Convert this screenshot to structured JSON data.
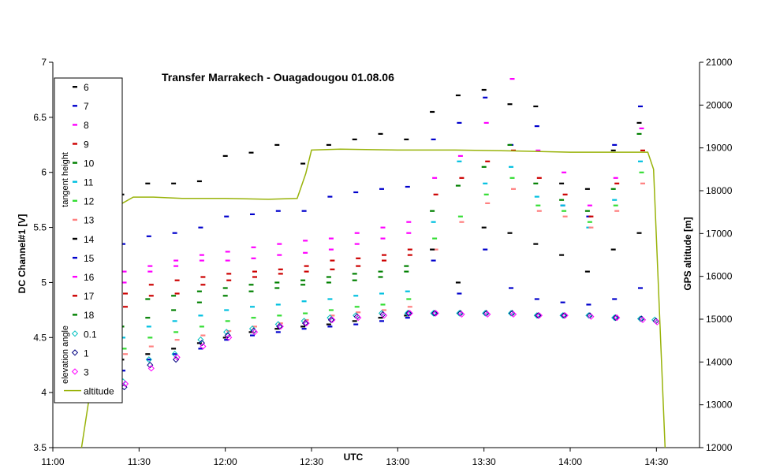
{
  "chart_data": {
    "type": "scatter",
    "title": "Transfer Marrakech - Ouagadougou   01.08.06",
    "xlabel": "UTC",
    "ylabel": "DC Channel#1 [V]",
    "y2label": "GPS altitude [m]",
    "x_ticks": [
      "11:00",
      "11:30",
      "12:00",
      "12:30",
      "13:00",
      "13:30",
      "14:00",
      "14:30"
    ],
    "xlim": [
      "11:00",
      "14:45"
    ],
    "ylim": [
      3.5,
      7
    ],
    "y_ticks": [
      "3.5",
      "4",
      "4.5",
      "5",
      "5.5",
      "6",
      "6.5",
      "7"
    ],
    "y2lim": [
      12000,
      21000
    ],
    "y2_ticks": [
      "12000",
      "13000",
      "14000",
      "15000",
      "16000",
      "17000",
      "18000",
      "19000",
      "20000",
      "21000"
    ],
    "grid": false,
    "legend_position": "left",
    "legend_sections": [
      "tangent height",
      "elevation angle"
    ],
    "colors": {
      "6": "#000000",
      "7": "#0000cc",
      "8": "#ff00ff",
      "9": "#cc0000",
      "10": "#008000",
      "11": "#00c0e0",
      "12": "#33dd33",
      "13": "#ff8080",
      "14": "#000000",
      "15": "#0000cc",
      "16": "#ff00ff",
      "17": "#cc0000",
      "18": "#008000",
      "0.1": "#00c0c0",
      "1": "#000080",
      "3": "#ff00ff",
      "altitude": "#99b30a"
    },
    "series": [
      {
        "name": "6",
        "marker": "dash",
        "group": "tangent",
        "x": [
          "11:24",
          "11:33",
          "11:42",
          "11:51",
          "12:00",
          "12:09",
          "12:18",
          "12:27",
          "12:36",
          "12:45",
          "12:54",
          "13:03",
          "13:12",
          "13:21",
          "13:30",
          "13:39",
          "13:48",
          "13:57",
          "14:06",
          "14:15",
          "14:24"
        ],
        "y": [
          5.8,
          5.9,
          5.9,
          5.92,
          6.15,
          6.18,
          6.25,
          6.08,
          6.25,
          6.3,
          6.35,
          6.3,
          6.55,
          6.7,
          6.75,
          6.62,
          6.6,
          5.9,
          5.85,
          6.2,
          6.45
        ]
      },
      {
        "name": "7",
        "marker": "dash",
        "group": "tangent",
        "x": [
          "11:24",
          "11:33",
          "11:42",
          "11:51",
          "12:00",
          "12:09",
          "12:18",
          "12:27",
          "12:36",
          "12:45",
          "12:54",
          "13:03",
          "13:12",
          "13:21",
          "13:30",
          "13:39",
          "13:48",
          "13:57",
          "14:06",
          "14:15",
          "14:24"
        ],
        "y": [
          5.35,
          5.42,
          5.45,
          5.5,
          5.6,
          5.62,
          5.65,
          5.65,
          5.78,
          5.82,
          5.85,
          5.87,
          6.3,
          6.45,
          6.68,
          6.25,
          6.42,
          5.7,
          5.6,
          6.25,
          6.6
        ]
      },
      {
        "name": "8",
        "marker": "dash",
        "group": "tangent",
        "x": [
          "11:24",
          "11:33",
          "11:42",
          "11:51",
          "12:00",
          "12:09",
          "12:18",
          "12:27",
          "12:36",
          "12:45",
          "12:54",
          "13:03",
          "13:12",
          "13:21",
          "13:30",
          "13:39",
          "13:48",
          "13:57",
          "14:06",
          "14:15",
          "14:24"
        ],
        "y": [
          5.1,
          5.15,
          5.2,
          5.25,
          5.28,
          5.32,
          5.35,
          5.38,
          5.4,
          5.45,
          5.5,
          5.55,
          5.95,
          6.15,
          6.45,
          6.85,
          6.2,
          6.0,
          5.7,
          5.95,
          6.4
        ]
      },
      {
        "name": "9",
        "marker": "dash",
        "group": "tangent",
        "x": [
          "11:24",
          "11:33",
          "11:42",
          "11:51",
          "12:00",
          "12:09",
          "12:18",
          "12:27",
          "12:36",
          "12:45",
          "12:54",
          "13:03",
          "13:12",
          "13:21",
          "13:30",
          "13:39",
          "13:48",
          "13:57",
          "14:06",
          "14:15",
          "14:24"
        ],
        "y": [
          4.9,
          4.98,
          5.02,
          5.05,
          5.08,
          5.1,
          5.12,
          5.15,
          5.2,
          5.22,
          5.25,
          5.3,
          5.8,
          5.95,
          6.1,
          6.2,
          5.95,
          5.8,
          5.6,
          5.9,
          6.2
        ]
      },
      {
        "name": "10",
        "marker": "dash",
        "group": "tangent",
        "x": [
          "11:24",
          "11:33",
          "11:42",
          "11:51",
          "12:00",
          "12:09",
          "12:18",
          "12:27",
          "12:36",
          "12:45",
          "12:54",
          "13:03",
          "13:12",
          "13:21",
          "13:30",
          "13:39",
          "13:48",
          "13:57",
          "14:06",
          "14:15",
          "14:24"
        ],
        "y": [
          4.6,
          4.85,
          4.88,
          4.92,
          4.95,
          4.98,
          5.0,
          5.02,
          5.05,
          5.08,
          5.1,
          5.15,
          5.65,
          5.88,
          6.05,
          6.25,
          5.9,
          5.75,
          5.65,
          5.85,
          6.35
        ]
      },
      {
        "name": "11",
        "marker": "dash",
        "group": "tangent",
        "x": [
          "11:24",
          "11:33",
          "11:42",
          "11:51",
          "12:00",
          "12:09",
          "12:18",
          "12:27",
          "12:36",
          "12:45",
          "12:54",
          "13:03",
          "13:12",
          "13:21",
          "13:30",
          "13:39",
          "13:48",
          "13:57",
          "14:06",
          "14:15",
          "14:24"
        ],
        "y": [
          4.5,
          4.6,
          4.65,
          4.7,
          4.75,
          4.78,
          4.8,
          4.83,
          4.85,
          4.88,
          4.9,
          4.92,
          5.55,
          6.1,
          5.9,
          6.05,
          5.78,
          5.7,
          5.5,
          5.75,
          6.1
        ]
      },
      {
        "name": "12",
        "marker": "dash",
        "group": "tangent",
        "x": [
          "11:24",
          "11:33",
          "11:42",
          "11:51",
          "12:00",
          "12:09",
          "12:18",
          "12:27",
          "12:36",
          "12:45",
          "12:54",
          "13:03",
          "13:12",
          "13:21",
          "13:30",
          "13:39",
          "13:48",
          "13:57",
          "14:06",
          "14:15",
          "14:24"
        ],
        "y": [
          4.4,
          4.5,
          4.55,
          4.6,
          4.65,
          4.68,
          4.7,
          4.72,
          4.75,
          4.78,
          4.8,
          4.85,
          5.4,
          5.6,
          5.8,
          5.95,
          5.7,
          5.65,
          5.55,
          5.7,
          6.0
        ]
      },
      {
        "name": "13",
        "marker": "dash",
        "group": "tangent",
        "x": [
          "11:24",
          "11:33",
          "11:42",
          "11:51",
          "12:00",
          "12:09",
          "12:18",
          "12:27",
          "12:36",
          "12:45",
          "12:54",
          "13:03",
          "13:12",
          "13:21",
          "13:30",
          "13:39",
          "13:48",
          "13:57",
          "14:06",
          "14:15",
          "14:24"
        ],
        "y": [
          4.35,
          4.42,
          4.48,
          4.52,
          4.56,
          4.6,
          4.63,
          4.66,
          4.7,
          4.73,
          4.75,
          4.78,
          5.3,
          5.55,
          5.72,
          5.85,
          5.65,
          5.6,
          5.5,
          5.65,
          5.9
        ]
      },
      {
        "name": "14",
        "marker": "dash",
        "group": "tangent",
        "x": [
          "11:24",
          "11:33",
          "11:42",
          "11:51",
          "12:00",
          "12:09",
          "12:18",
          "12:27",
          "12:36",
          "12:45",
          "12:54",
          "13:03",
          "13:12",
          "13:21",
          "13:30",
          "13:39",
          "13:48",
          "13:57",
          "14:06",
          "14:15",
          "14:24"
        ],
        "y": [
          4.3,
          4.35,
          4.4,
          4.45,
          4.5,
          4.55,
          4.58,
          4.6,
          4.62,
          4.65,
          4.68,
          4.7,
          5.3,
          5.0,
          5.5,
          5.45,
          5.35,
          5.25,
          5.1,
          5.3,
          5.45
        ]
      },
      {
        "name": "15",
        "marker": "dash",
        "group": "tangent",
        "x": [
          "11:24",
          "11:33",
          "11:42",
          "11:51",
          "12:00",
          "12:09",
          "12:18",
          "12:27",
          "12:36",
          "12:45",
          "12:54",
          "13:03",
          "13:12",
          "13:21",
          "13:30",
          "13:39",
          "13:48",
          "13:57",
          "14:06",
          "14:15",
          "14:24"
        ],
        "y": [
          4.2,
          4.3,
          4.35,
          4.4,
          4.48,
          4.52,
          4.55,
          4.58,
          4.6,
          4.62,
          4.65,
          4.68,
          5.2,
          4.9,
          5.3,
          4.95,
          4.85,
          4.82,
          4.8,
          4.85,
          4.95
        ]
      },
      {
        "name": "16",
        "marker": "dash",
        "group": "tangent",
        "x": [
          "11:24",
          "11:33",
          "11:42",
          "11:51",
          "12:00",
          "12:09",
          "12:18",
          "12:27",
          "12:36",
          "12:45",
          "12:54",
          "13:03"
        ],
        "y": [
          5.0,
          5.1,
          5.15,
          5.2,
          5.2,
          5.22,
          5.25,
          5.27,
          5.3,
          5.35,
          5.4,
          5.45
        ]
      },
      {
        "name": "17",
        "marker": "dash",
        "group": "tangent",
        "x": [
          "11:24",
          "11:33",
          "11:42",
          "11:51",
          "12:00",
          "12:09",
          "12:18",
          "12:27",
          "12:36",
          "12:45",
          "12:54",
          "13:03"
        ],
        "y": [
          4.78,
          4.88,
          4.9,
          4.98,
          5.02,
          5.05,
          5.08,
          5.1,
          5.12,
          5.15,
          5.2,
          5.25
        ]
      },
      {
        "name": "18",
        "marker": "dash",
        "group": "tangent",
        "x": [
          "11:24",
          "11:33",
          "11:42",
          "11:51",
          "12:00",
          "12:09",
          "12:18",
          "12:27",
          "12:36",
          "12:45",
          "12:54",
          "13:03"
        ],
        "y": [
          4.6,
          4.68,
          4.75,
          4.82,
          4.88,
          4.92,
          4.95,
          4.98,
          5.0,
          5.02,
          5.05,
          5.1
        ]
      },
      {
        "name": "0.1",
        "marker": "diamond",
        "group": "elevation",
        "x": [
          "11:24",
          "11:33",
          "11:42",
          "11:51",
          "12:00",
          "12:09",
          "12:18",
          "12:27",
          "12:36",
          "12:45",
          "12:54",
          "13:03",
          "13:12",
          "13:21",
          "13:30",
          "13:39",
          "13:48",
          "13:57",
          "14:06",
          "14:15",
          "14:24",
          "14:29"
        ],
        "y": [
          4.1,
          4.3,
          4.35,
          4.48,
          4.55,
          4.58,
          4.62,
          4.65,
          4.68,
          4.7,
          4.72,
          4.72,
          4.72,
          4.72,
          4.72,
          4.72,
          4.7,
          4.7,
          4.7,
          4.68,
          4.67,
          4.66
        ]
      },
      {
        "name": "1",
        "marker": "diamond",
        "group": "elevation",
        "x": [
          "11:24",
          "11:33",
          "11:42",
          "11:51",
          "12:00",
          "12:09",
          "12:18",
          "12:27",
          "12:36",
          "12:45",
          "12:54",
          "13:03",
          "13:12",
          "13:21",
          "13:30",
          "13:39",
          "13:48",
          "13:57",
          "14:06",
          "14:15",
          "14:24",
          "14:29"
        ],
        "y": [
          4.05,
          4.25,
          4.3,
          4.45,
          4.52,
          4.56,
          4.6,
          4.63,
          4.66,
          4.69,
          4.71,
          4.72,
          4.72,
          4.72,
          4.72,
          4.72,
          4.7,
          4.7,
          4.7,
          4.68,
          4.67,
          4.65
        ]
      },
      {
        "name": "3",
        "marker": "diamond",
        "group": "elevation",
        "x": [
          "11:24",
          "11:33",
          "11:42",
          "11:51",
          "12:00",
          "12:09",
          "12:18",
          "12:27",
          "12:36",
          "12:45",
          "12:54",
          "13:03",
          "13:12",
          "13:21",
          "13:30",
          "13:39",
          "13:48",
          "13:57",
          "14:06",
          "14:15",
          "14:24",
          "14:29"
        ],
        "y": [
          4.08,
          4.22,
          4.32,
          4.42,
          4.5,
          4.55,
          4.6,
          4.63,
          4.66,
          4.68,
          4.7,
          4.72,
          4.72,
          4.71,
          4.71,
          4.71,
          4.7,
          4.7,
          4.69,
          4.68,
          4.66,
          4.64
        ]
      },
      {
        "name": "altitude",
        "marker": "line",
        "axis": "right",
        "x": [
          "11:10",
          "11:15",
          "11:20",
          "11:24",
          "11:28",
          "11:35",
          "11:45",
          "12:00",
          "12:15",
          "12:25",
          "12:28",
          "12:30",
          "12:40",
          "13:00",
          "13:20",
          "13:40",
          "14:00",
          "14:20",
          "14:27",
          "14:29",
          "14:33"
        ],
        "y": [
          12000,
          14200,
          16500,
          17700,
          17850,
          17850,
          17820,
          17820,
          17800,
          17820,
          18400,
          18950,
          18970,
          18950,
          18950,
          18930,
          18900,
          18900,
          18900,
          18500,
          12000
        ]
      }
    ]
  }
}
